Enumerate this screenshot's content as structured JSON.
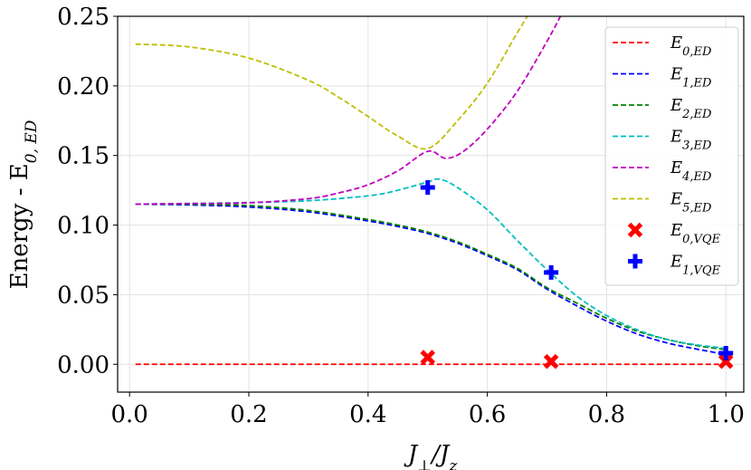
{
  "chart_data": {
    "type": "line",
    "xlabel": {
      "main": "J",
      "sub1": "⊥",
      "mid": "/J",
      "sub2": "z"
    },
    "ylabel": {
      "main": "Energy - E",
      "sub": "0, ED"
    },
    "xlim": [
      -0.02,
      1.03
    ],
    "ylim": [
      -0.02,
      0.25
    ],
    "xticks": [
      0.0,
      0.2,
      0.4,
      0.6,
      0.8,
      1.0
    ],
    "xtick_labels": [
      "0.0",
      "0.2",
      "0.4",
      "0.6",
      "0.8",
      "1.0"
    ],
    "yticks": [
      0.0,
      0.05,
      0.1,
      0.15,
      0.2,
      0.25
    ],
    "ytick_labels": [
      "0.00",
      "0.05",
      "0.10",
      "0.15",
      "0.20",
      "0.25"
    ],
    "grid": true,
    "legend_position": "top-right",
    "series": [
      {
        "name": "E",
        "sub": "0,ED",
        "style": "dashed",
        "color": "#ff0000",
        "x": [
          0.01,
          1.0
        ],
        "y": [
          0.0,
          0.0
        ]
      },
      {
        "name": "E",
        "sub": "1,ED",
        "style": "dashed",
        "color": "#0000ff",
        "x": [
          0.01,
          0.1,
          0.2,
          0.3,
          0.4,
          0.45,
          0.5,
          0.55,
          0.6,
          0.65,
          0.7,
          0.75,
          0.8,
          0.85,
          0.9,
          0.95,
          1.0
        ],
        "y": [
          0.115,
          0.1145,
          0.113,
          0.1095,
          0.103,
          0.099,
          0.094,
          0.087,
          0.078,
          0.068,
          0.054,
          0.042,
          0.031,
          0.022,
          0.0155,
          0.011,
          0.007
        ]
      },
      {
        "name": "E",
        "sub": "2,ED",
        "style": "dashed",
        "color": "#008000",
        "x": [
          0.01,
          0.1,
          0.2,
          0.3,
          0.4,
          0.45,
          0.5,
          0.55,
          0.6,
          0.65,
          0.7,
          0.75,
          0.8,
          0.85,
          0.9,
          0.95,
          1.0
        ],
        "y": [
          0.115,
          0.115,
          0.114,
          0.1105,
          0.104,
          0.1,
          0.095,
          0.088,
          0.079,
          0.069,
          0.055,
          0.044,
          0.033,
          0.024,
          0.018,
          0.0135,
          0.0105
        ]
      },
      {
        "name": "E",
        "sub": "3,ED",
        "style": "dashed",
        "color": "#00bfbf",
        "x": [
          0.01,
          0.1,
          0.2,
          0.3,
          0.4,
          0.45,
          0.5,
          0.52,
          0.55,
          0.6,
          0.65,
          0.7,
          0.75,
          0.8,
          0.85,
          0.9,
          0.95,
          1.0
        ],
        "y": [
          0.115,
          0.1155,
          0.1162,
          0.1175,
          0.121,
          0.125,
          0.131,
          0.133,
          0.127,
          0.111,
          0.089,
          0.068,
          0.049,
          0.035,
          0.025,
          0.018,
          0.014,
          0.0115
        ]
      },
      {
        "name": "E",
        "sub": "4,ED",
        "style": "dashed",
        "color": "#bf00bf",
        "x": [
          0.01,
          0.1,
          0.2,
          0.3,
          0.35,
          0.4,
          0.45,
          0.5,
          0.53,
          0.56,
          0.6,
          0.65,
          0.7,
          0.725
        ],
        "y": [
          0.115,
          0.1155,
          0.116,
          0.119,
          0.123,
          0.129,
          0.139,
          0.153,
          0.148,
          0.153,
          0.169,
          0.196,
          0.232,
          0.252
        ]
      },
      {
        "name": "E",
        "sub": "5,ED",
        "style": "dashed",
        "color": "#bfbf00",
        "x": [
          0.01,
          0.1,
          0.2,
          0.3,
          0.35,
          0.4,
          0.45,
          0.5,
          0.55,
          0.6,
          0.65,
          0.67
        ],
        "y": [
          0.23,
          0.228,
          0.22,
          0.204,
          0.192,
          0.178,
          0.164,
          0.155,
          0.175,
          0.202,
          0.238,
          0.252
        ]
      },
      {
        "name": "E",
        "sub": "0,VQE",
        "style": "marker-x",
        "color": "#ff0000",
        "x": [
          0.5,
          0.707,
          1.0
        ],
        "y": [
          0.005,
          0.002,
          0.002
        ]
      },
      {
        "name": "E",
        "sub": "1,VQE",
        "style": "marker-plus",
        "color": "#0000ff",
        "x": [
          0.5,
          0.707,
          1.0
        ],
        "y": [
          0.127,
          0.066,
          0.008
        ]
      }
    ]
  }
}
